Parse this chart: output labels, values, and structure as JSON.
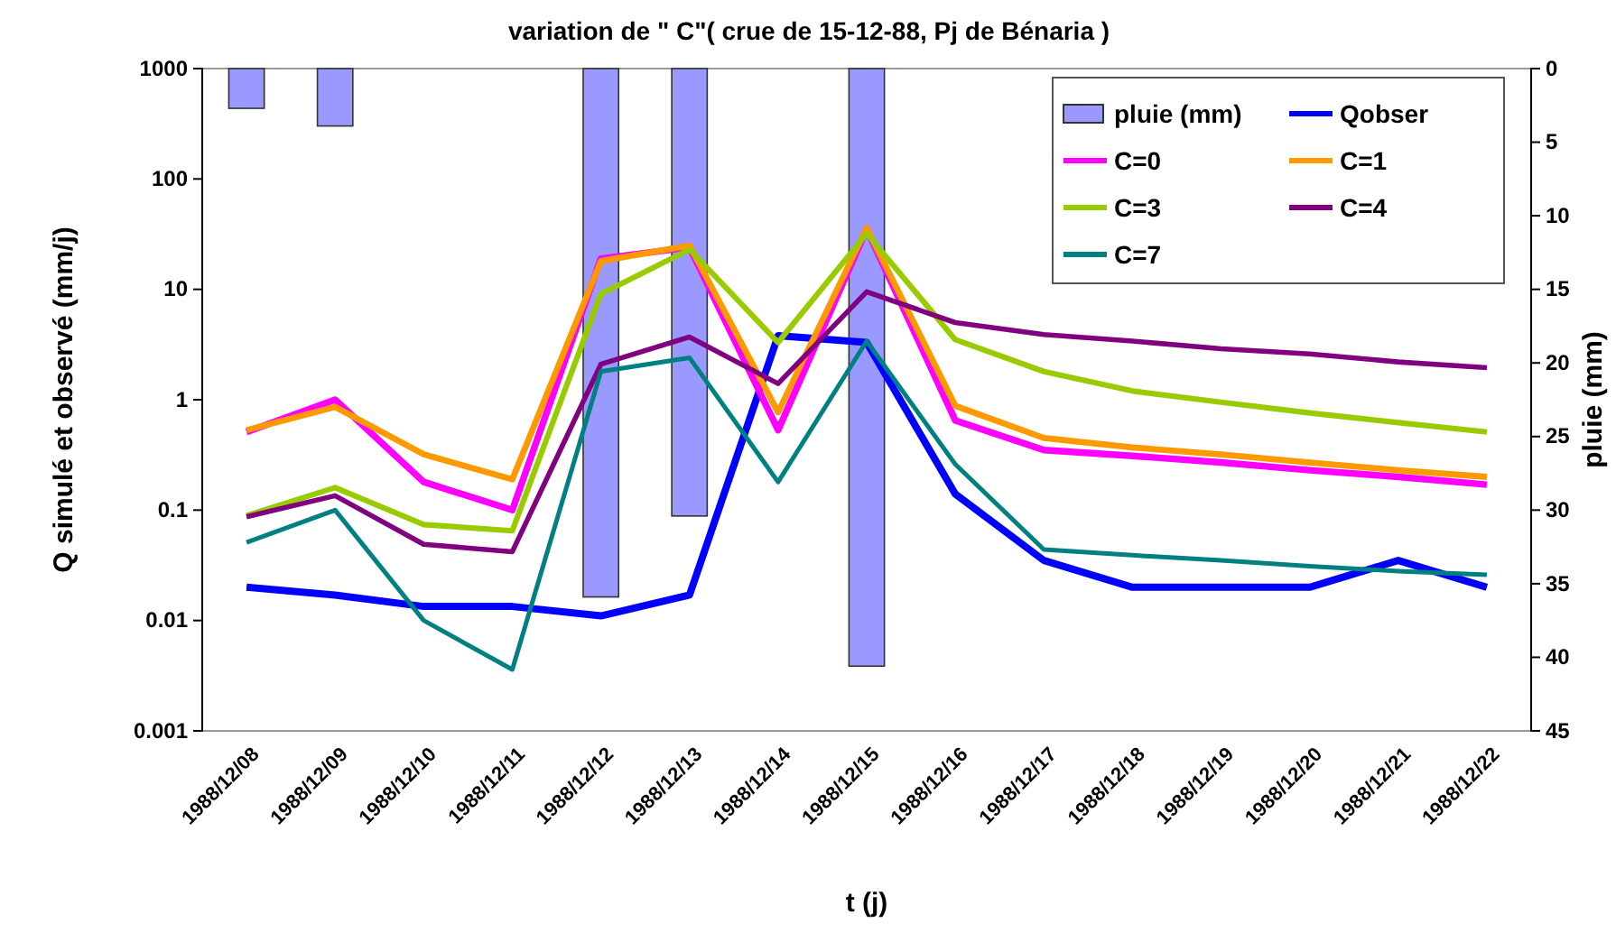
{
  "chart_data": {
    "type": "line",
    "title": "variation de \" C\"( crue de 15-12-88, Pj de Bénaria )",
    "xlabel": "t (j)",
    "ylabel": "Q simulé et observé (mm/j)",
    "y2label": "pluie (mm)",
    "categories": [
      "1988/12/08",
      "1988/12/09",
      "1988/12/10",
      "1988/12/11",
      "1988/12/12",
      "1988/12/13",
      "1988/12/14",
      "1988/12/15",
      "1988/12/16",
      "1988/12/17",
      "1988/12/18",
      "1988/12/19",
      "1988/12/20",
      "1988/12/21",
      "1988/12/22"
    ],
    "log": "y",
    "ylim": [
      0.001,
      1000
    ],
    "yticks": [
      0.001,
      0.01,
      0.1,
      1,
      10,
      100,
      1000
    ],
    "y2lim": [
      45,
      0
    ],
    "y2ticks": [
      0,
      5,
      10,
      15,
      20,
      25,
      30,
      35,
      40,
      45
    ],
    "grid": false,
    "legend": "top right",
    "marker": "none",
    "line_style": "solid",
    "series": [
      {
        "name": "pluie (mm)",
        "type": "bar",
        "axis": "y2",
        "color": "#9999ff",
        "values": [
          2.7,
          3.9,
          0,
          0,
          35.9,
          30.4,
          0,
          40.6,
          0,
          0,
          0,
          0,
          0,
          0,
          0
        ]
      },
      {
        "name": "Qobser",
        "color": "#0000ff",
        "values": [
          0.02,
          0.017,
          0.0134,
          0.0134,
          0.011,
          0.017,
          3.8,
          3.3,
          0.14,
          0.035,
          0.02,
          0.02,
          0.02,
          0.035,
          0.02
        ]
      },
      {
        "name": "C=0",
        "color": "#ff00ff",
        "values": [
          0.51,
          1.0,
          0.18,
          0.1,
          19,
          24,
          0.53,
          35,
          0.65,
          0.35,
          0.31,
          0.27,
          0.23,
          0.2,
          0.17
        ]
      },
      {
        "name": "C=1",
        "color": "#ff9900",
        "values": [
          0.53,
          0.86,
          0.32,
          0.19,
          18,
          25,
          0.77,
          36,
          0.88,
          0.45,
          0.37,
          0.32,
          0.27,
          0.23,
          0.2
        ]
      },
      {
        "name": "C=3",
        "color": "#99cc00",
        "values": [
          0.089,
          0.16,
          0.074,
          0.065,
          9.1,
          23,
          3.3,
          32,
          3.5,
          1.8,
          1.2,
          0.95,
          0.76,
          0.62,
          0.51
        ]
      },
      {
        "name": "C=4",
        "color": "#800080",
        "values": [
          0.087,
          0.135,
          0.049,
          0.042,
          2.1,
          3.7,
          1.4,
          9.5,
          5.0,
          3.9,
          3.4,
          2.9,
          2.6,
          2.2,
          1.95
        ]
      },
      {
        "name": "C=7",
        "color": "#008080",
        "values": [
          0.051,
          0.1,
          0.01,
          0.0036,
          1.8,
          2.4,
          0.18,
          3.4,
          0.26,
          0.044,
          0.039,
          0.035,
          0.031,
          0.028,
          0.026
        ]
      }
    ]
  }
}
